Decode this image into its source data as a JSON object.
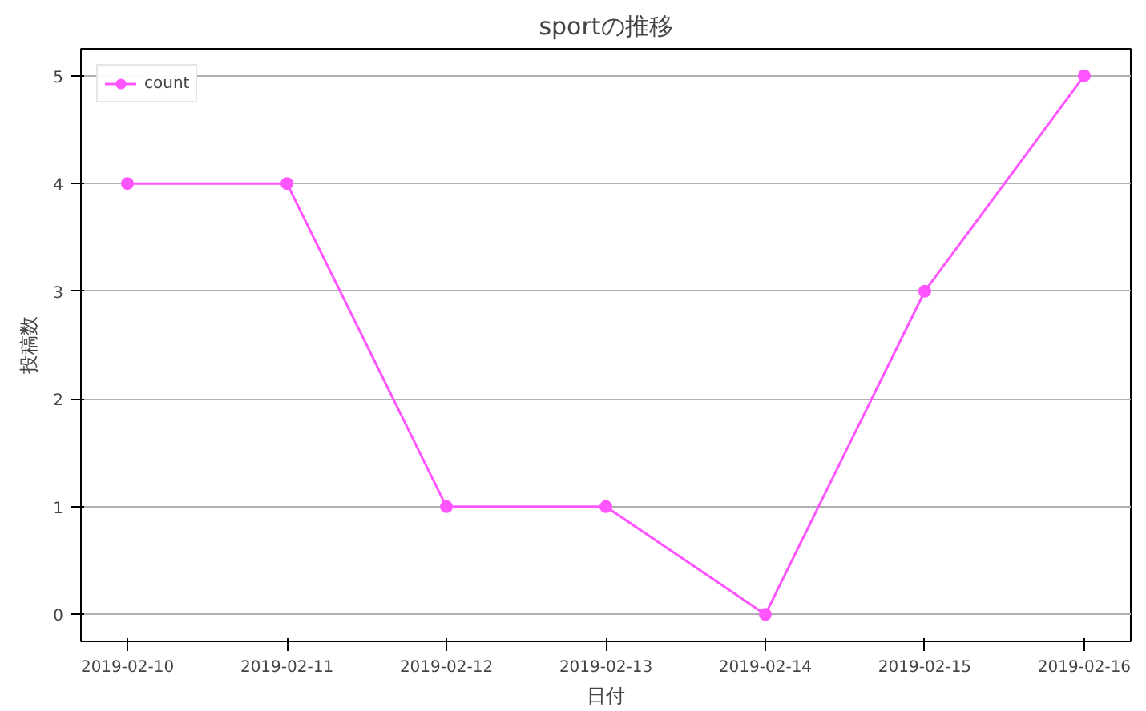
{
  "chart_data": {
    "type": "line",
    "title": "sportの推移",
    "xlabel": "日付",
    "ylabel": "投稿数",
    "x": [
      "2019-02-10",
      "2019-02-11",
      "2019-02-12",
      "2019-02-13",
      "2019-02-14",
      "2019-02-15",
      "2019-02-16"
    ],
    "series": [
      {
        "name": "count",
        "color": "#ff55ff",
        "values": [
          4,
          4,
          1,
          1,
          0,
          3,
          5
        ]
      }
    ],
    "xlim": [
      "2019-02-09T17:00",
      "2019-02-16T07:00"
    ],
    "xticks": [
      "2019-02-10",
      "2019-02-11",
      "2019-02-12",
      "2019-02-13",
      "2019-02-14",
      "2019-02-15",
      "2019-02-16"
    ],
    "ylim": [
      -0.25,
      5.25
    ],
    "yticks": [
      0,
      1,
      2,
      3,
      4,
      5
    ],
    "grid": "y",
    "legend": "top left",
    "marker": "circle",
    "line_style": "solid"
  }
}
